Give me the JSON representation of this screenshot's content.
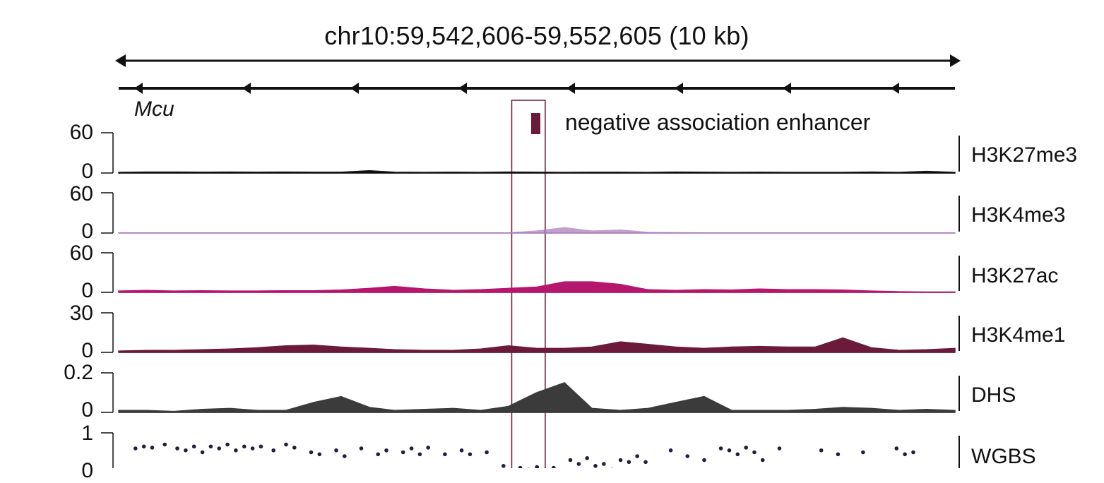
{
  "figure": {
    "region_title": "chr10:59,542,606-59,552,605 (10 kb)",
    "gene_name": "Mcu",
    "gene_strand": "minus",
    "highlight_label": "negative association enhancer",
    "highlight_color": "#6b1a3a"
  },
  "chart_data": {
    "type": "area",
    "x": [
      0,
      0.033,
      0.066,
      0.1,
      0.133,
      0.166,
      0.2,
      0.233,
      0.266,
      0.3,
      0.33,
      0.366,
      0.4,
      0.433,
      0.466,
      0.5,
      0.533,
      0.566,
      0.6,
      0.633,
      0.666,
      0.7,
      0.733,
      0.766,
      0.8,
      0.833,
      0.866,
      0.9,
      0.933,
      0.966,
      1.0
    ],
    "highlight_range": [
      0.47,
      0.51
    ],
    "series": [
      {
        "name": "H3K27me3",
        "color": "#111111",
        "ylim": [
          0,
          60
        ],
        "tick_labels": [
          "60",
          "0"
        ],
        "values": [
          1,
          1.5,
          1.5,
          1.2,
          1.5,
          1.2,
          1.5,
          1.2,
          1.2,
          3.5,
          1.2,
          1,
          1.2,
          1,
          1.5,
          1.2,
          1,
          1.2,
          1.2,
          1,
          1.5,
          1.2,
          1,
          1.2,
          1,
          1,
          1,
          1.5,
          1,
          2.5,
          1
        ]
      },
      {
        "name": "H3K4me3",
        "color": "#a779b6",
        "ylim": [
          0,
          60
        ],
        "tick_labels": [
          "60",
          "0"
        ],
        "values": [
          0.3,
          0.3,
          0.3,
          0.3,
          0.3,
          0.3,
          0.3,
          0.3,
          0.3,
          0.3,
          0.3,
          0.3,
          0.3,
          0.3,
          0.3,
          3,
          8,
          3,
          4.5,
          1,
          0.5,
          0.3,
          0.3,
          0.3,
          0.3,
          0.3,
          0.3,
          0.3,
          0.3,
          0.3,
          0.3
        ]
      },
      {
        "name": "H3K27ac",
        "color": "#b5176d",
        "ylim": [
          0,
          60
        ],
        "tick_labels": [
          "60",
          "0"
        ],
        "values": [
          2,
          3,
          2,
          2.5,
          2,
          2,
          2.5,
          2.5,
          3.5,
          6,
          9,
          5,
          3,
          4,
          6,
          8,
          16,
          16,
          12,
          4,
          3,
          4,
          3.5,
          5,
          4,
          4,
          3.5,
          2,
          1,
          0.5,
          0.5
        ]
      },
      {
        "name": "H3K4me1",
        "color": "#6b1a3a",
        "ylim": [
          0,
          30
        ],
        "tick_labels": [
          "30",
          "0"
        ],
        "values": [
          1,
          1.5,
          1.5,
          2,
          2.5,
          3.5,
          5,
          5.5,
          4,
          3,
          2,
          1.5,
          1.5,
          2.5,
          5,
          3,
          3,
          4,
          8,
          6,
          4,
          3,
          4,
          4.5,
          4,
          4,
          11,
          3.5,
          1.5,
          2,
          3
        ]
      },
      {
        "name": "DHS",
        "color": "#3b3b3b",
        "ylim": [
          0,
          0.2
        ],
        "tick_labels": [
          "0.2",
          "0"
        ],
        "values": [
          0.01,
          0.01,
          0.005,
          0.015,
          0.02,
          0.01,
          0.01,
          0.05,
          0.08,
          0.025,
          0.01,
          0.015,
          0.02,
          0.01,
          0.03,
          0.1,
          0.15,
          0.02,
          0.01,
          0.02,
          0.05,
          0.08,
          0.01,
          0.01,
          0.01,
          0.015,
          0.025,
          0.02,
          0.01,
          0.015,
          0.01
        ]
      }
    ],
    "wgbs": {
      "name": "WGBS",
      "color": "#1f1f3d",
      "tick_labels": [
        "1",
        "0"
      ],
      "points": [
        [
          0.01,
          0.6
        ],
        [
          0.02,
          0.65
        ],
        [
          0.03,
          0.62
        ],
        [
          0.045,
          0.7
        ],
        [
          0.06,
          0.6
        ],
        [
          0.07,
          0.55
        ],
        [
          0.08,
          0.65
        ],
        [
          0.09,
          0.5
        ],
        [
          0.1,
          0.65
        ],
        [
          0.11,
          0.6
        ],
        [
          0.12,
          0.7
        ],
        [
          0.13,
          0.55
        ],
        [
          0.14,
          0.65
        ],
        [
          0.15,
          0.6
        ],
        [
          0.16,
          0.65
        ],
        [
          0.175,
          0.55
        ],
        [
          0.19,
          0.7
        ],
        [
          0.2,
          0.62
        ],
        [
          0.22,
          0.5
        ],
        [
          0.23,
          0.45
        ],
        [
          0.25,
          0.55
        ],
        [
          0.26,
          0.4
        ],
        [
          0.28,
          0.6
        ],
        [
          0.3,
          0.45
        ],
        [
          0.31,
          0.55
        ],
        [
          0.33,
          0.5
        ],
        [
          0.34,
          0.6
        ],
        [
          0.35,
          0.45
        ],
        [
          0.36,
          0.62
        ],
        [
          0.38,
          0.45
        ],
        [
          0.4,
          0.55
        ],
        [
          0.41,
          0.45
        ],
        [
          0.43,
          0.5
        ],
        [
          0.45,
          0.15
        ],
        [
          0.47,
          0.1
        ],
        [
          0.48,
          0.05
        ],
        [
          0.49,
          0.12
        ],
        [
          0.5,
          0.05
        ],
        [
          0.51,
          0.1
        ],
        [
          0.53,
          0.3
        ],
        [
          0.54,
          0.2
        ],
        [
          0.55,
          0.35
        ],
        [
          0.56,
          0.15
        ],
        [
          0.57,
          0.2
        ],
        [
          0.58,
          0.05
        ],
        [
          0.59,
          0.3
        ],
        [
          0.6,
          0.25
        ],
        [
          0.61,
          0.4
        ],
        [
          0.62,
          0.25
        ],
        [
          0.65,
          0.55
        ],
        [
          0.67,
          0.4
        ],
        [
          0.69,
          0.3
        ],
        [
          0.71,
          0.6
        ],
        [
          0.72,
          0.55
        ],
        [
          0.73,
          0.45
        ],
        [
          0.74,
          0.62
        ],
        [
          0.75,
          0.5
        ],
        [
          0.76,
          0.3
        ],
        [
          0.78,
          0.6
        ],
        [
          0.83,
          0.55
        ],
        [
          0.85,
          0.45
        ],
        [
          0.88,
          0.5
        ],
        [
          0.92,
          0.6
        ],
        [
          0.93,
          0.45
        ],
        [
          0.94,
          0.5
        ]
      ]
    }
  }
}
